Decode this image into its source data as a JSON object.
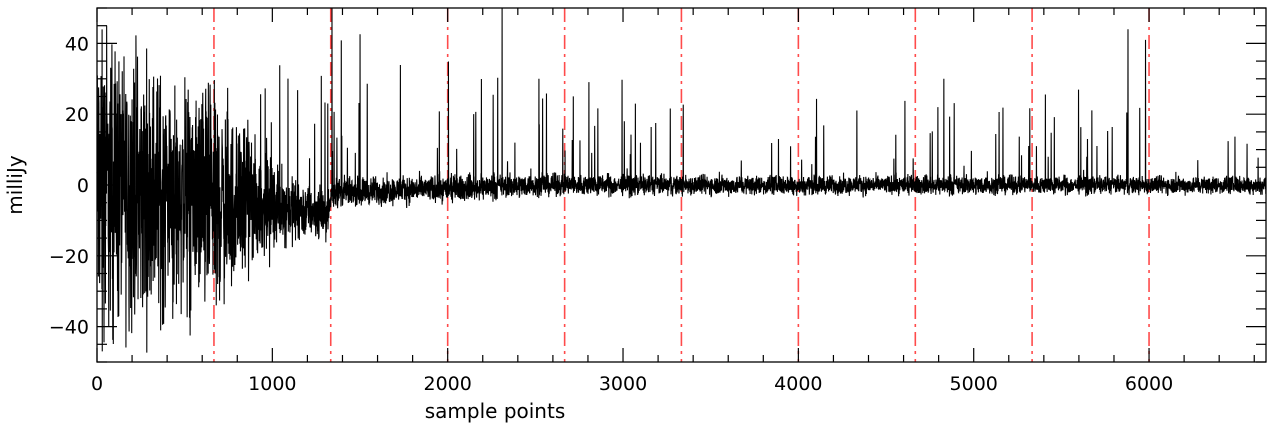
{
  "colors": {
    "trace": "#000000",
    "markers": "#ff4b4b",
    "axes": "#000000",
    "background": "#ffffff"
  },
  "chart_data": {
    "type": "line",
    "title": "",
    "xlabel": "sample points",
    "ylabel": "milliJy",
    "xlim": [
      0,
      6667
    ],
    "ylim": [
      -50,
      50
    ],
    "grid": false,
    "legend": "none",
    "x_ticks": [
      0,
      1000,
      2000,
      3000,
      4000,
      5000,
      6000
    ],
    "x_tick_labels": [
      "0",
      "1000",
      "2000",
      "3000",
      "4000",
      "5000",
      "6000"
    ],
    "y_ticks": [
      -40,
      -20,
      0,
      20,
      40
    ],
    "y_tick_labels": [
      "−40",
      "−20",
      "0",
      "20",
      "40"
    ],
    "series": [
      {
        "type": "noisy-trace",
        "x_range": [
          0,
          6667
        ],
        "n_points": 6667,
        "envelope": [
          {
            "x": 0,
            "baseline": 0,
            "noise": 20,
            "spike_max": 22
          },
          {
            "x": 700,
            "baseline": -5,
            "noise": 14,
            "spike_max": 40
          },
          {
            "x": 1000,
            "baseline": -6,
            "noise": 5,
            "spike_max": 45
          },
          {
            "x": 1320,
            "baseline": -8,
            "noise": 3,
            "spike_max": 50
          },
          {
            "x": 1340,
            "baseline": -2,
            "noise": 2,
            "spike_max": 50
          },
          {
            "x": 2000,
            "baseline": -1,
            "noise": 1.8,
            "spike_max": 40
          },
          {
            "x": 2500,
            "baseline": 0,
            "noise": 1.5,
            "spike_max": 32
          },
          {
            "x": 4000,
            "baseline": 0,
            "noise": 1.3,
            "spike_max": 26
          },
          {
            "x": 6667,
            "baseline": 0,
            "noise": 1.2,
            "spike_max": 28
          }
        ],
        "notable_peaks": [
          {
            "x": 1340,
            "y": 50
          },
          {
            "x": 2310,
            "y": 50
          },
          {
            "x": 5880,
            "y": 44
          },
          {
            "x": 5980,
            "y": 41
          },
          {
            "x": 4830,
            "y": 30
          },
          {
            "x": 2520,
            "y": 30
          },
          {
            "x": 680,
            "y": -34
          },
          {
            "x": 30,
            "y": -47
          }
        ]
      }
    ],
    "vertical_markers": {
      "style": "dash-dot",
      "x": [
        667,
        1333,
        2000,
        2667,
        3333,
        4000,
        4667,
        5333,
        6000
      ]
    }
  }
}
